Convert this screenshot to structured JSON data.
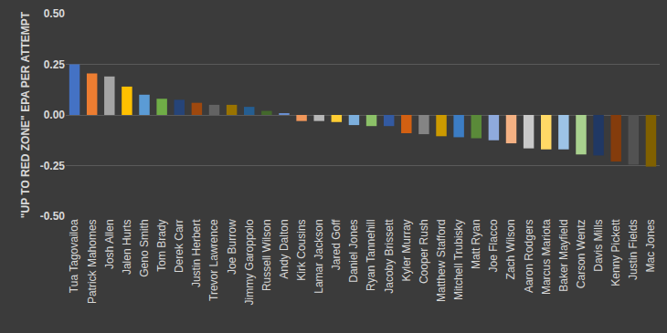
{
  "chart_data": {
    "type": "bar",
    "y_label": "\"UP TO RED ZONE\" EPA PER ATTEMPT",
    "categories": [
      "Tua Tagovailoa",
      "Patrick Mahomes",
      "Josh Allen",
      "Jalen Hurts",
      "Geno Smith",
      "Tom Brady",
      "Derek Carr",
      "Justin Herbert",
      "Trevor Lawrence",
      "Joe Burrow",
      "Jimmy Garoppolo",
      "Russell Wilson",
      "Andy Dalton",
      "Kirk Cousins",
      "Lamar Jackson",
      "Jared Goff",
      "Daniel Jones",
      "Ryan Tannehill",
      "Jacoby Brissett",
      "Kyler Murray",
      "Cooper Rush",
      "Matthew Stafford",
      "Mitchell Trubisky",
      "Matt Ryan",
      "Joe Flacco",
      "Zach Wilson",
      "Aaron Rodgers",
      "Marcus Mariota",
      "Baker Mayfield",
      "Carson Wentz",
      "Davis Mills",
      "Kenny Pickett",
      "Justin Fields",
      "Mac Jones"
    ],
    "values": [
      0.25,
      0.205,
      0.19,
      0.14,
      0.1,
      0.08,
      0.075,
      0.06,
      0.05,
      0.05,
      0.04,
      0.02,
      0.005,
      -0.03,
      -0.03,
      -0.035,
      -0.05,
      -0.055,
      -0.055,
      -0.09,
      -0.095,
      -0.105,
      -0.11,
      -0.115,
      -0.125,
      -0.14,
      -0.165,
      -0.17,
      -0.17,
      -0.195,
      -0.2,
      -0.23,
      -0.245,
      -0.255
    ],
    "colors": [
      "#4472c4",
      "#ed7d31",
      "#a5a5a5",
      "#ffc000",
      "#5b9bd5",
      "#70ad47",
      "#264478",
      "#9e480e",
      "#636363",
      "#997300",
      "#255e91",
      "#43682b",
      "#698ed0",
      "#f1975a",
      "#b7b7b7",
      "#ffcd33",
      "#7cafdd",
      "#8cc168",
      "#335aa1",
      "#d26012",
      "#848484",
      "#cc9a00",
      "#3c7dc4",
      "#5a8a39",
      "#8faadc",
      "#f4b183",
      "#c9c9c9",
      "#ffd966",
      "#9dc3e6",
      "#a9d18e",
      "#203864",
      "#843c0c",
      "#525252",
      "#806000"
    ],
    "ylim": [
      -0.5,
      0.5
    ],
    "yticks": [
      {
        "value": -0.5,
        "label": "-0.50"
      },
      {
        "value": -0.25,
        "label": "-0.25"
      },
      {
        "value": 0,
        "label": "0.00"
      },
      {
        "value": 0.25,
        "label": "0.25"
      },
      {
        "value": 0.5,
        "label": "0.50"
      }
    ],
    "grid": true
  }
}
